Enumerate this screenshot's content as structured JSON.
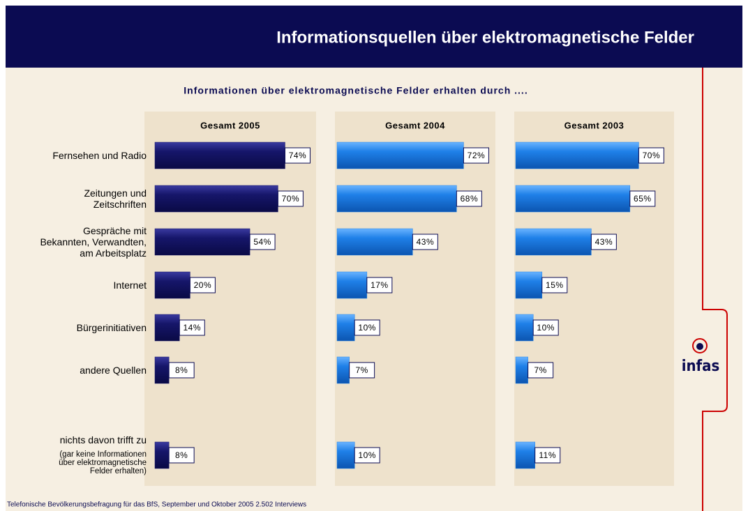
{
  "header": {
    "title": "Informationsquellen über elektromagnetische Felder"
  },
  "chart_data": {
    "type": "bar",
    "title": "Informationen über elektromagnetische Felder erhalten durch ....",
    "categories": [
      "Fernsehen und Radio",
      "Zeitungen und\nZeitschriften",
      "Gespräche mit\nBekannten, Verwandten,\nam Arbeitsplatz",
      "Internet",
      "Bürgerinitiativen",
      "andere Quellen",
      "nichts davon trifft zu"
    ],
    "category_note": "(gar keine Informationen\nüber elektromagnetische\nFelder erhalten)",
    "series": [
      {
        "name": "Gesamt 2005",
        "color": "#16166a",
        "values": [
          74,
          70,
          54,
          20,
          14,
          8,
          8
        ],
        "value_labels": [
          "74%",
          "70%",
          "54%",
          "20%",
          "14%",
          "8%",
          "8%"
        ]
      },
      {
        "name": "Gesamt 2004",
        "color": "#1f80e8",
        "values": [
          72,
          68,
          43,
          17,
          10,
          7,
          10
        ],
        "value_labels": [
          "72%",
          "68%",
          "43%",
          "17%",
          "10%",
          "7%",
          "10%"
        ]
      },
      {
        "name": "Gesamt 2003",
        "color": "#1f80e8",
        "values": [
          70,
          65,
          43,
          15,
          10,
          7,
          11
        ],
        "value_labels": [
          "70%",
          "65%",
          "43%",
          "15%",
          "10%",
          "7%",
          "11%"
        ]
      }
    ]
  },
  "footer": "Telefonische Bevölkerungsbefragung für das BfS, September und Oktober 2005 2.502 Interviews",
  "logo": "infas"
}
